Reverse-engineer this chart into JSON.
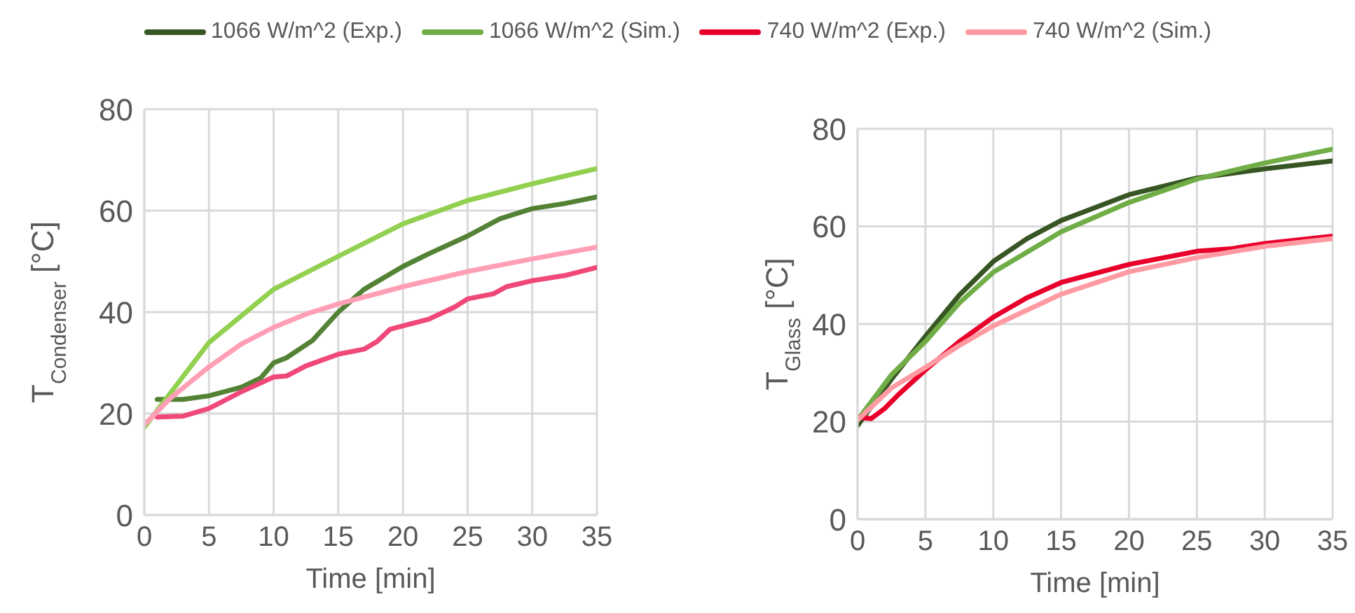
{
  "chart_data": [
    {
      "type": "line",
      "xlabel": "Time [min]",
      "ylabel": "T$_{Condenser}$ [°C]",
      "xlim": [
        0,
        35
      ],
      "xticks": [
        0,
        5,
        10,
        15,
        20,
        25,
        30,
        35
      ],
      "ylim": [
        0,
        80
      ],
      "yticks": [
        0,
        20,
        40,
        60,
        80
      ],
      "grid": true,
      "marker": "none",
      "line_style": "solid",
      "series": [
        {
          "color": "#548235",
          "x": [
            1,
            3,
            5,
            7.5,
            9,
            10,
            11,
            13,
            15,
            17,
            20,
            22,
            25,
            27.5,
            30,
            32.5,
            35
          ],
          "values": [
            22.8,
            22.8,
            23.5,
            25.2,
            27,
            30,
            31,
            34.4,
            40,
            44.5,
            49,
            51.5,
            55,
            58.4,
            60.4,
            61.4,
            62.7
          ]
        },
        {
          "color": "#92d050",
          "x": [
            0,
            5,
            10,
            15,
            20,
            25,
            30,
            35
          ],
          "values": [
            17.3,
            34,
            44.5,
            51,
            57.4,
            62,
            65.3,
            68.3
          ]
        },
        {
          "color": "#f04878",
          "x": [
            1,
            3,
            5,
            7.5,
            10,
            11,
            12.5,
            15,
            17,
            18,
            19,
            20,
            22,
            24,
            25,
            27,
            28,
            30,
            32.5,
            35
          ],
          "values": [
            19.3,
            19.5,
            21,
            24.3,
            27.2,
            27.4,
            29.4,
            31.7,
            32.7,
            34.2,
            36.6,
            37.3,
            38.6,
            41,
            42.6,
            43.6,
            45,
            46.2,
            47.2,
            48.8
          ]
        },
        {
          "color": "#ff9fb5",
          "x": [
            0,
            2,
            5,
            7.5,
            10,
            12.5,
            15,
            20,
            25,
            30,
            35
          ],
          "values": [
            17.8,
            23,
            29.2,
            33.7,
            37,
            39.6,
            41.6,
            45,
            48,
            50.5,
            52.8
          ]
        }
      ]
    },
    {
      "type": "line",
      "xlabel": "Time [min]",
      "ylabel": "T$_{Glass}$ [°C]",
      "xlim": [
        0,
        35
      ],
      "xticks": [
        0,
        5,
        10,
        15,
        20,
        25,
        30,
        35
      ],
      "ylim": [
        0,
        80
      ],
      "yticks": [
        0,
        20,
        40,
        60,
        80
      ],
      "grid": true,
      "marker": "none",
      "line_style": "solid",
      "legend": "top",
      "series": [
        {
          "name": "1066 W/m^2 (Exp.)",
          "color": "#375623",
          "x": [
            0,
            2.5,
            5,
            7.5,
            10,
            12.5,
            15,
            20,
            25,
            30,
            35
          ],
          "values": [
            19.2,
            28.7,
            37.5,
            45.9,
            52.8,
            57.5,
            61.2,
            66.5,
            69.9,
            71.8,
            73.4
          ]
        },
        {
          "name": "1066 W/m^2 (Sim.)",
          "color": "#70ad47",
          "x": [
            0,
            2.5,
            5,
            7.5,
            10,
            15,
            20,
            25,
            30,
            35
          ],
          "values": [
            20.3,
            29.6,
            36.4,
            44.3,
            50.6,
            58.9,
            64.9,
            69.7,
            73,
            75.8
          ]
        },
        {
          "name": "740 W/m^2 (Exp.)",
          "color": "#e8002a",
          "x": [
            0,
            1,
            2,
            3,
            5,
            7.5,
            10,
            12.5,
            15,
            20,
            25,
            27.5,
            30,
            35
          ],
          "values": [
            20.9,
            20.6,
            22.7,
            25.5,
            30.6,
            36.4,
            41.4,
            45.4,
            48.5,
            52.2,
            54.9,
            55.4,
            56.5,
            58
          ]
        },
        {
          "name": "740 W/m^2 (Sim.)",
          "color": "#ff9aa2",
          "x": [
            0,
            2.5,
            5,
            7.5,
            10,
            15,
            20,
            25,
            30,
            35
          ],
          "values": [
            20.3,
            26.9,
            31.1,
            35.6,
            39.6,
            46.1,
            50.7,
            53.6,
            55.9,
            57.5
          ]
        }
      ]
    }
  ]
}
